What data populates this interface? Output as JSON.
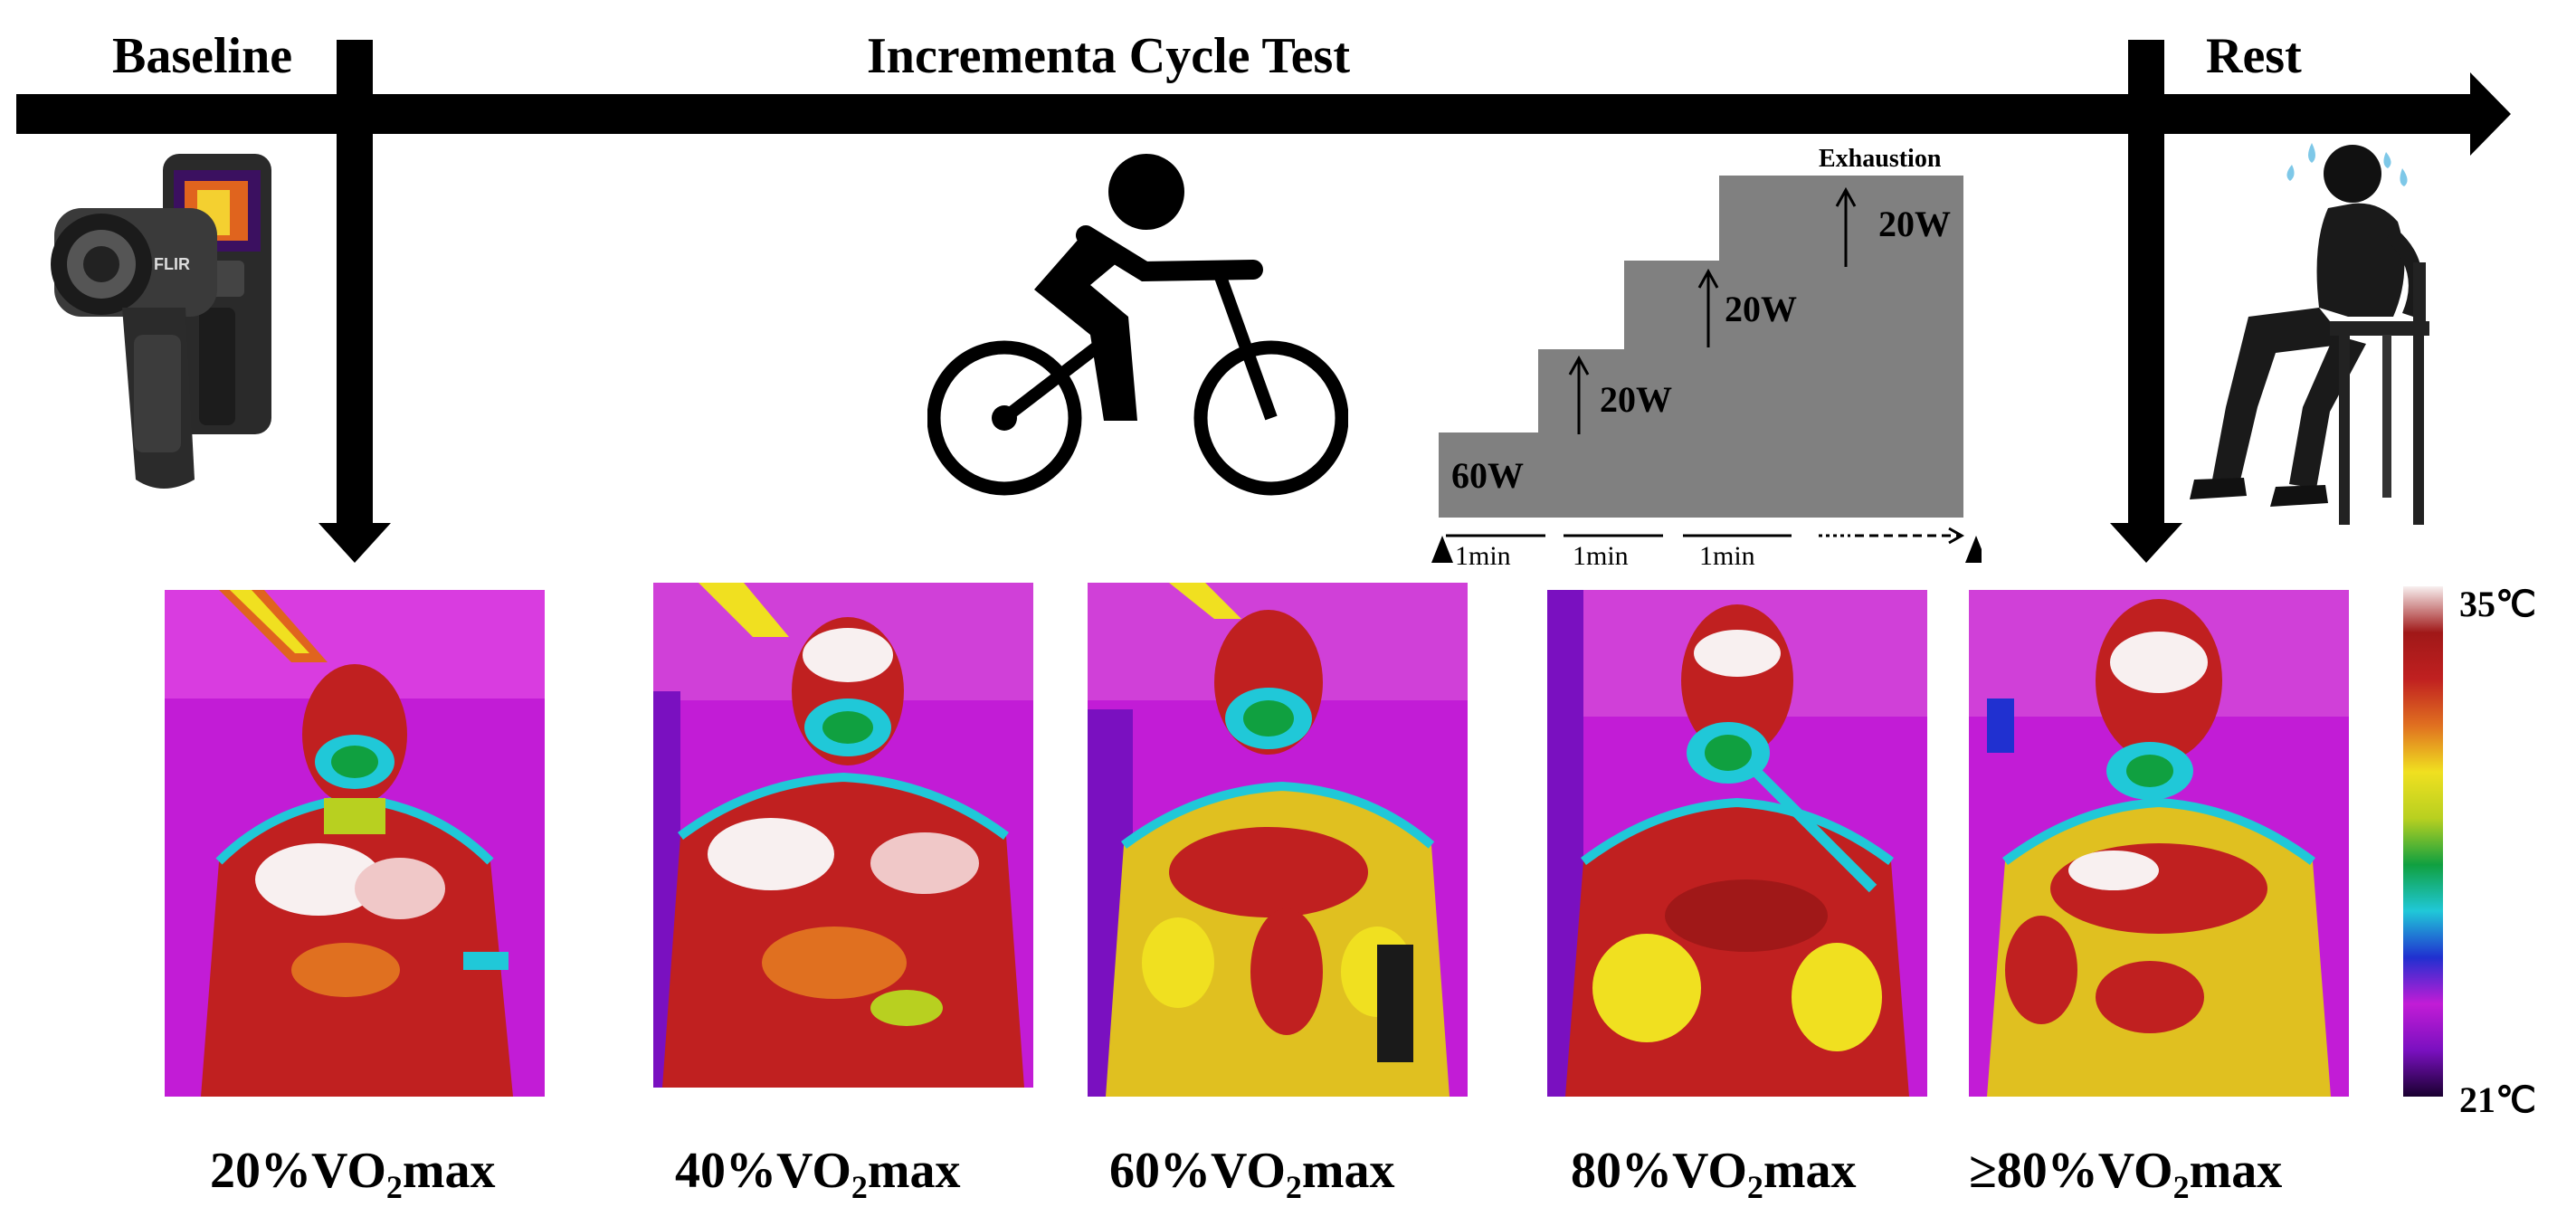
{
  "phases": {
    "baseline": "Baseline",
    "incremental": "Incrementa Cycle Test",
    "rest": "Rest"
  },
  "protocol": {
    "start_load": "60W",
    "increments": [
      "20W",
      "20W",
      "20W"
    ],
    "end_label": "Exhaustion",
    "durations": [
      "1min",
      "1min",
      "1min"
    ]
  },
  "thermograms": [
    {
      "intensity": "20%",
      "unit_main": "VO",
      "unit_sub": "2",
      "unit_tail": "max"
    },
    {
      "intensity": "40%",
      "unit_main": "VO",
      "unit_sub": "2",
      "unit_tail": "max"
    },
    {
      "intensity": "60%",
      "unit_main": "VO",
      "unit_sub": "2",
      "unit_tail": "max"
    },
    {
      "intensity": "80%",
      "unit_main": "VO",
      "unit_sub": "2",
      "unit_tail": "max"
    },
    {
      "intensity": "≥80%",
      "unit_main": "VO",
      "unit_sub": "2",
      "unit_tail": "max"
    }
  ],
  "color_scale": {
    "max_label": "35℃",
    "min_label": "21℃",
    "stops": [
      "#1a0030",
      "#7a10c0",
      "#c21cd6",
      "#2030d0",
      "#20c8d8",
      "#10a040",
      "#b8d020",
      "#f0e020",
      "#e07020",
      "#c02020",
      "#a01818",
      "#f8f0f0"
    ]
  },
  "icons": [
    "thermal-camera-icon",
    "cyclist-icon",
    "resting-person-icon"
  ]
}
